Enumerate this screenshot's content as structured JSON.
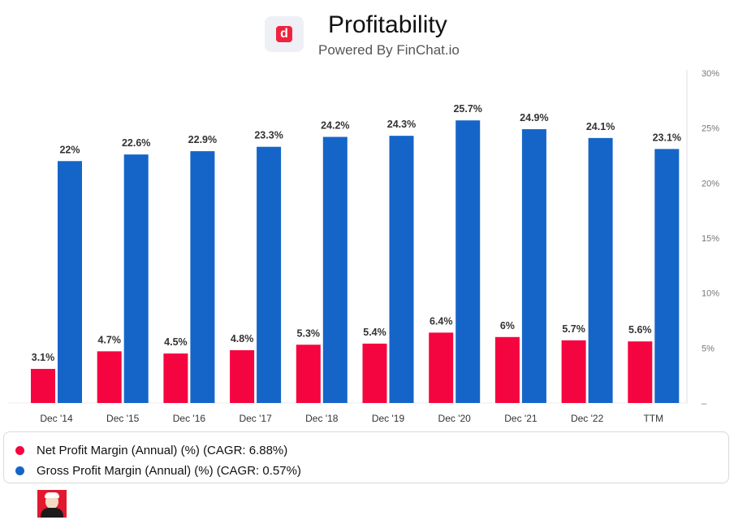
{
  "header": {
    "logo_letter": "d",
    "title": "Profitability",
    "subtitle": "Powered By FinChat.io"
  },
  "colors": {
    "net": "#f5053f",
    "gross": "#1565c8",
    "axis": "#777777",
    "label": "#333333"
  },
  "chart_data": {
    "type": "bar",
    "categories": [
      "Dec '14",
      "Dec '15",
      "Dec '16",
      "Dec '17",
      "Dec '18",
      "Dec '19",
      "Dec '20",
      "Dec '21",
      "Dec '22",
      "TTM"
    ],
    "series": [
      {
        "name": "Net Profit Margin (Annual) (%)",
        "values": [
          3.1,
          4.7,
          4.5,
          4.8,
          5.3,
          5.4,
          6.4,
          6,
          5.7,
          5.6
        ],
        "labels": [
          "3.1%",
          "4.7%",
          "4.5%",
          "4.8%",
          "5.3%",
          "5.4%",
          "6.4%",
          "6%",
          "5.7%",
          "5.6%"
        ]
      },
      {
        "name": "Gross Profit Margin (Annual) (%)",
        "values": [
          22,
          22.6,
          22.9,
          23.3,
          24.2,
          24.3,
          25.7,
          24.9,
          24.1,
          23.1
        ],
        "labels": [
          "22%",
          "22.6%",
          "22.9%",
          "23.3%",
          "24.2%",
          "24.3%",
          "25.7%",
          "24.9%",
          "24.1%",
          "23.1%"
        ]
      }
    ],
    "y_ticks": [
      0,
      5,
      10,
      15,
      20,
      25,
      30
    ],
    "y_tick_labels": [
      "–",
      "5%",
      "10%",
      "15%",
      "20%",
      "25%",
      "30%"
    ],
    "ylim": [
      0,
      30
    ],
    "y_axis_side": "right",
    "xlabel": "",
    "ylabel": ""
  },
  "legend": {
    "items": [
      {
        "label": "Net Profit Margin (Annual) (%) (CAGR: 6.88%)"
      },
      {
        "label": "Gross Profit Margin (Annual) (%) (CAGR: 0.57%)"
      }
    ]
  }
}
